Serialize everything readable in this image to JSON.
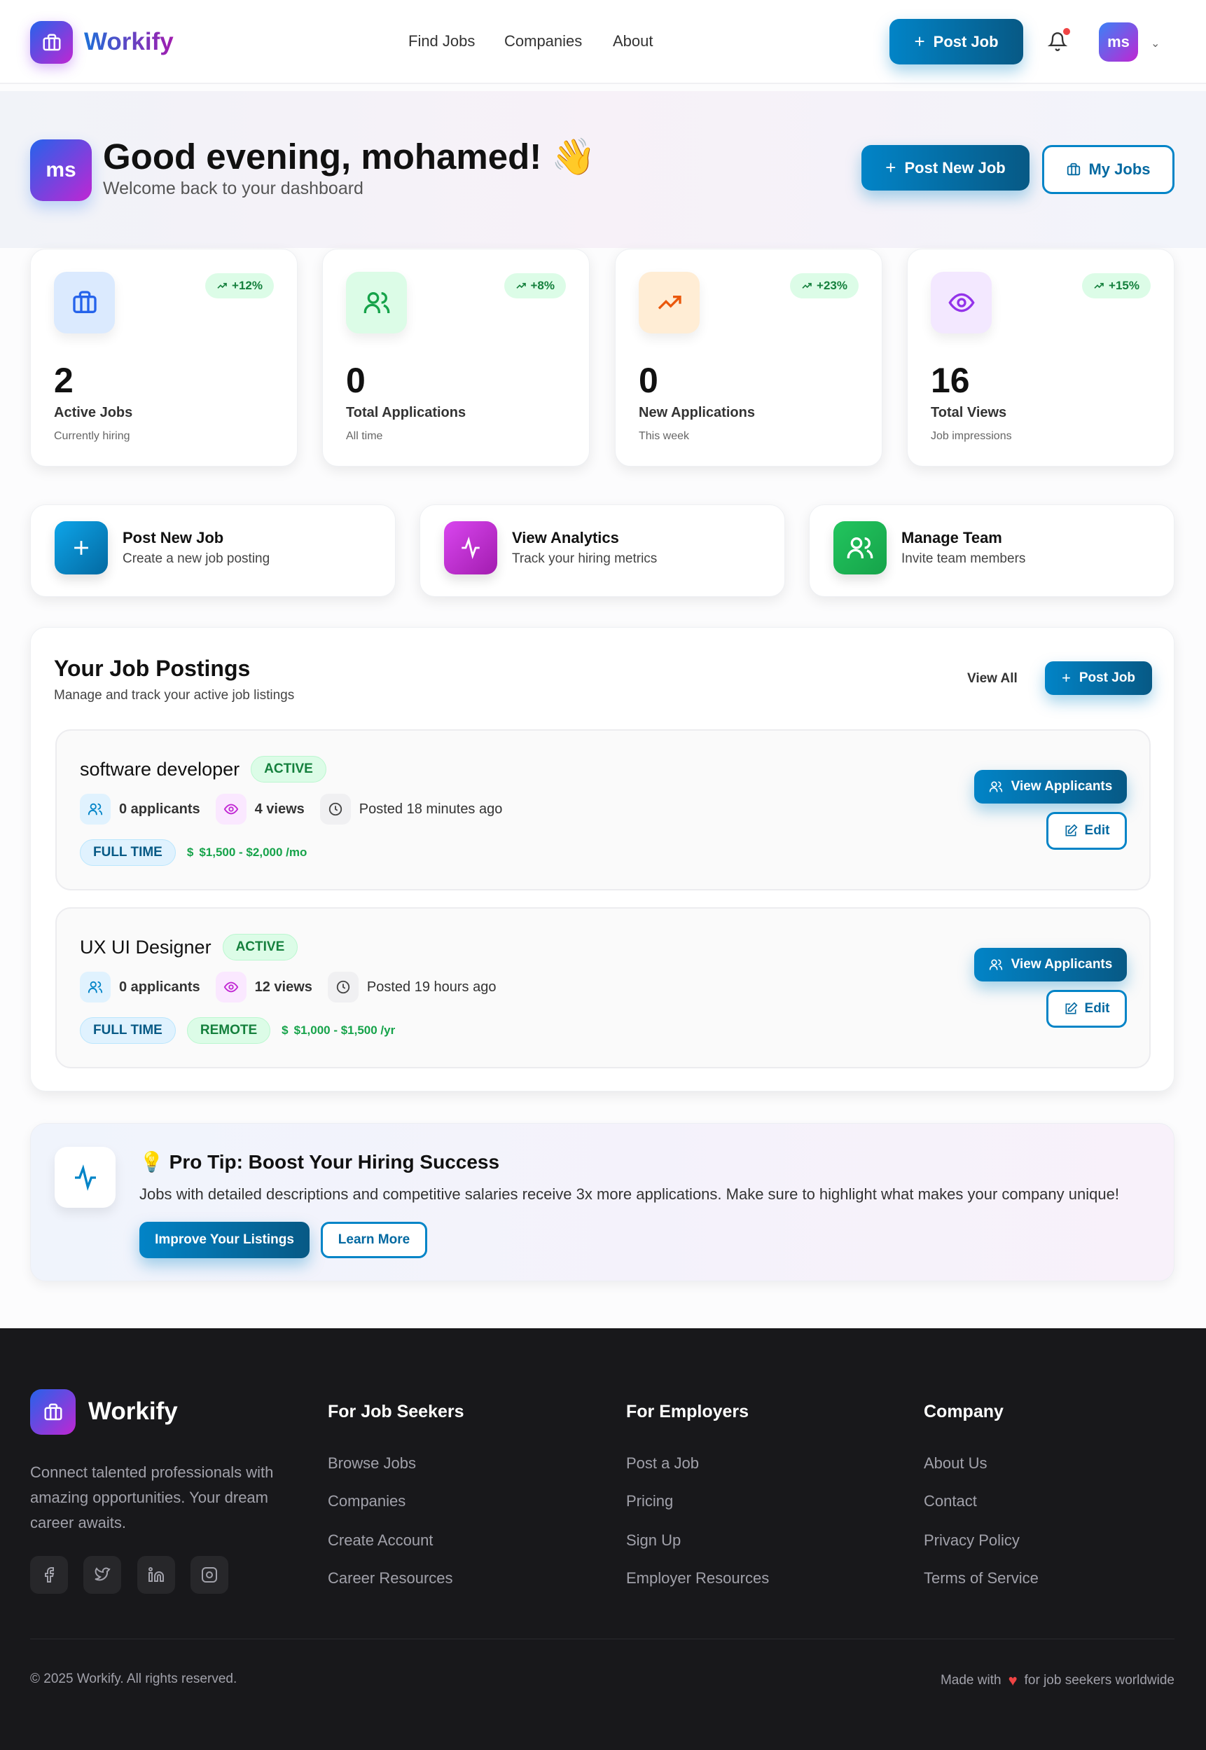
{
  "header": {
    "brand": "Workify",
    "nav": [
      "Find Jobs",
      "Companies",
      "About"
    ],
    "post_job": "Post Job",
    "avatar": "ms",
    "notification_dot": true
  },
  "hero": {
    "avatar": "ms",
    "greeting": "Good evening, mohamed! 👋",
    "subtitle": "Welcome back to your dashboard",
    "post_new_job": "Post New Job",
    "my_jobs": "My Jobs"
  },
  "stats": [
    {
      "icon": "briefcase-icon",
      "value": "2",
      "label": "Active Jobs",
      "sub": "Currently hiring",
      "trend": "+12%",
      "color": "#2563eb",
      "bg": "#dbeafe"
    },
    {
      "icon": "users-icon",
      "value": "0",
      "label": "Total Applications",
      "sub": "All time",
      "trend": "+8%",
      "color": "#16a34a",
      "bg": "#dcfce7"
    },
    {
      "icon": "trending-up-icon",
      "value": "0",
      "label": "New Applications",
      "sub": "This week",
      "trend": "+23%",
      "color": "#ea580c",
      "bg": "#ffedd5"
    },
    {
      "icon": "eye-icon",
      "value": "16",
      "label": "Total Views",
      "sub": "Job impressions",
      "trend": "+15%",
      "color": "#9333ea",
      "bg": "#f3e8ff"
    }
  ],
  "quick_actions": [
    {
      "icon": "plus-icon",
      "title": "Post New Job",
      "sub": "Create a new job posting"
    },
    {
      "icon": "activity-icon",
      "title": "View Analytics",
      "sub": "Track your hiring metrics"
    },
    {
      "icon": "users-icon",
      "title": "Manage Team",
      "sub": "Invite team members"
    }
  ],
  "postings": {
    "title": "Your Job Postings",
    "subtitle": "Manage and track your active job listings",
    "view_all": "View All",
    "post_job": "Post Job",
    "jobs": [
      {
        "title": "software developer",
        "status": "ACTIVE",
        "applicants": "0 applicants",
        "views": "4 views",
        "posted": "Posted 18 minutes ago",
        "tags": [
          "FULL TIME"
        ],
        "salary": "$1,500 - $2,000 /mo",
        "view_applicants": "View Applicants",
        "edit": "Edit"
      },
      {
        "title": "UX UI Designer",
        "status": "ACTIVE",
        "applicants": "0 applicants",
        "views": "12 views",
        "posted": "Posted 19 hours ago",
        "tags": [
          "FULL TIME",
          "REMOTE"
        ],
        "salary": "$1,000 - $1,500 /yr",
        "view_applicants": "View Applicants",
        "edit": "Edit"
      }
    ]
  },
  "tip": {
    "title": "💡 Pro Tip: Boost Your Hiring Success",
    "body": "Jobs with detailed descriptions and competitive salaries receive 3x more applications. Make sure to highlight what makes your company unique!",
    "primary": "Improve Your Listings",
    "secondary": "Learn More"
  },
  "footer": {
    "brand": "Workify",
    "description": [
      "Connect talented professionals with",
      "amazing opportunities. Your dream",
      "career awaits."
    ],
    "columns": [
      {
        "title": "For Job Seekers",
        "links": [
          "Browse Jobs",
          "Companies",
          "Create Account",
          "Career Resources"
        ]
      },
      {
        "title": "For Employers",
        "links": [
          "Post a Job",
          "Pricing",
          "Sign Up",
          "Employer Resources"
        ]
      },
      {
        "title": "Company",
        "links": [
          "About Us",
          "Contact",
          "Privacy Policy",
          "Terms of Service"
        ]
      }
    ],
    "social": [
      "facebook-icon",
      "twitter-icon",
      "linkedin-icon",
      "instagram-icon"
    ],
    "copyright": "© 2025 Workify. All rights reserved.",
    "made_with_prefix": "Made with",
    "made_with_suffix": "for job seekers worldwide"
  }
}
